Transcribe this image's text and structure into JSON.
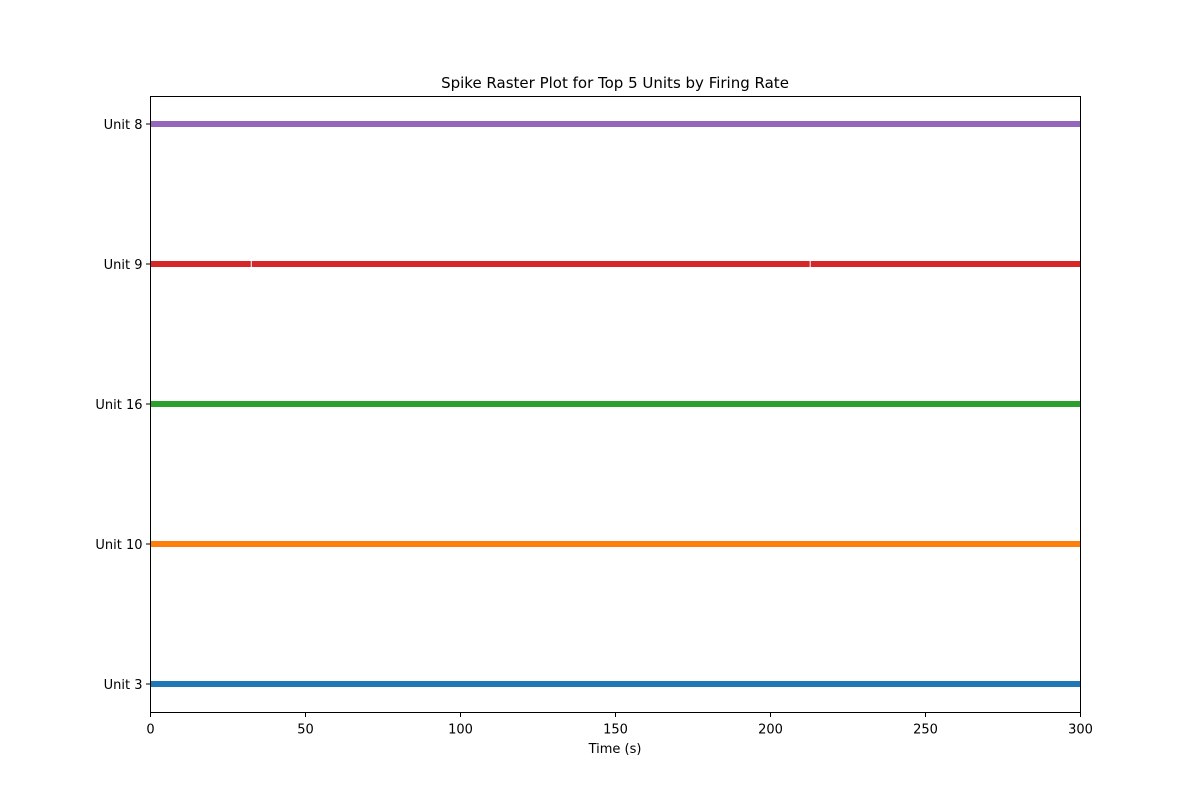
{
  "chart_data": {
    "type": "raster",
    "title": "Spike Raster Plot for Top 5 Units by Firing Rate",
    "xlabel": "Time (s)",
    "ylabel": "",
    "xlim": [
      0,
      300
    ],
    "xticks": [
      0,
      50,
      100,
      150,
      200,
      250,
      300
    ],
    "grid": false,
    "units": [
      {
        "label": "Unit 3",
        "color": "#1f77b4",
        "spans": [
          [
            0,
            300
          ]
        ],
        "gaps": []
      },
      {
        "label": "Unit 10",
        "color": "#ff7f0e",
        "spans": [
          [
            0,
            300
          ]
        ],
        "gaps": []
      },
      {
        "label": "Unit 16",
        "color": "#2ca02c",
        "spans": [
          [
            0,
            300
          ]
        ],
        "gaps": []
      },
      {
        "label": "Unit 9",
        "color": "#d62728",
        "spans": [
          [
            0,
            300
          ]
        ],
        "gaps": [
          32.5,
          212.8
        ]
      },
      {
        "label": "Unit 8",
        "color": "#9467bd",
        "spans": [
          [
            0,
            300
          ]
        ],
        "gaps": []
      }
    ]
  }
}
